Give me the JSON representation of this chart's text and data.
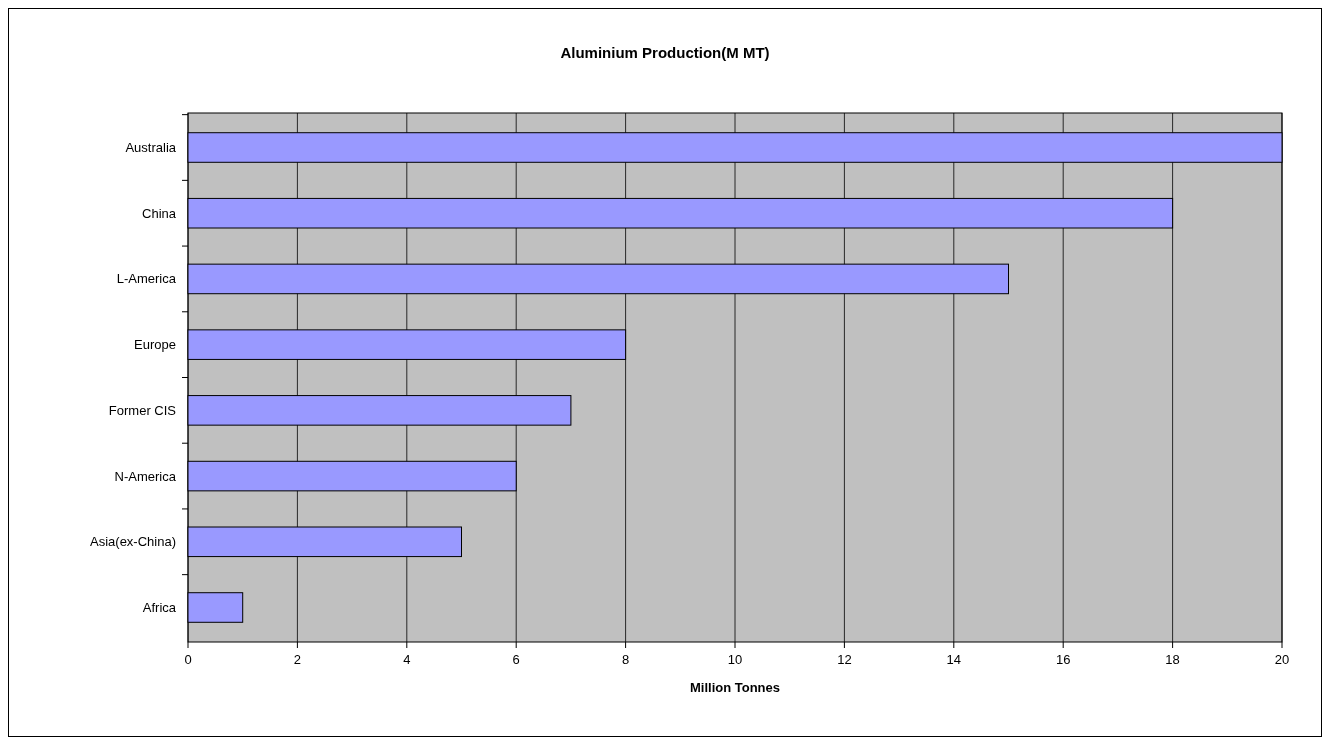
{
  "chart_data": {
    "type": "bar",
    "orientation": "horizontal",
    "title": "Aluminium Production(M MT)",
    "xlabel": "Million Tonnes",
    "categories": [
      "Australia",
      "China",
      "L-America",
      "Europe",
      "Former CIS",
      "N-America",
      "Asia(ex-China)",
      "Africa"
    ],
    "series": [
      {
        "color": "#9999ff",
        "values": [
          20,
          18,
          15,
          8,
          7,
          6,
          5,
          1
        ]
      }
    ],
    "xlim": [
      0,
      20
    ],
    "xticks": [
      0,
      2,
      4,
      6,
      8,
      10,
      12,
      14,
      16,
      18,
      20
    ],
    "grid": "x"
  }
}
